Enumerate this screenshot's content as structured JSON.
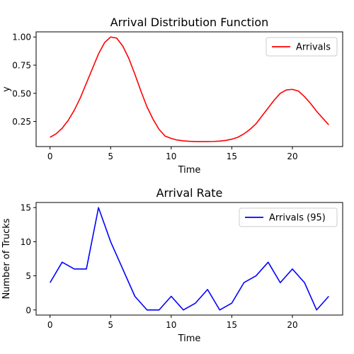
{
  "chart_data": [
    {
      "type": "line",
      "title": "Arrival Distribution Function",
      "xlabel": "Time",
      "ylabel": "y",
      "xlim": [
        -1.15,
        24.15
      ],
      "ylim": [
        0.0275,
        1.0455
      ],
      "xticks": [
        0,
        5,
        10,
        15,
        20
      ],
      "yticks": [
        0.25,
        0.5,
        0.75,
        1.0
      ],
      "ytick_labels": [
        "0.25",
        "0.50",
        "0.75",
        "1.00"
      ],
      "legend_position": "upper-right",
      "series": [
        {
          "name": "Arrivals",
          "color": "#ff0000",
          "x": [
            0,
            0.5,
            1,
            1.5,
            2,
            2.5,
            3,
            3.5,
            4,
            4.5,
            5,
            5.5,
            6,
            6.5,
            7,
            7.5,
            8,
            8.5,
            9,
            9.5,
            10,
            10.5,
            11,
            11.5,
            12,
            12.5,
            13,
            13.5,
            14,
            14.5,
            15,
            15.5,
            16,
            16.5,
            17,
            17.5,
            18,
            18.5,
            19,
            19.5,
            20,
            20.5,
            21,
            21.5,
            22,
            22.5,
            23
          ],
          "y": [
            0.11,
            0.14,
            0.19,
            0.26,
            0.35,
            0.46,
            0.59,
            0.72,
            0.85,
            0.95,
            1.0,
            0.99,
            0.92,
            0.81,
            0.67,
            0.52,
            0.38,
            0.27,
            0.18,
            0.12,
            0.1,
            0.085,
            0.078,
            0.074,
            0.072,
            0.072,
            0.072,
            0.073,
            0.076,
            0.082,
            0.093,
            0.11,
            0.14,
            0.18,
            0.23,
            0.3,
            0.37,
            0.44,
            0.5,
            0.53,
            0.535,
            0.52,
            0.47,
            0.41,
            0.34,
            0.28,
            0.22
          ]
        }
      ]
    },
    {
      "type": "line",
      "title": "Arrival Rate",
      "xlabel": "Time",
      "ylabel": "Number of Trucks",
      "xlim": [
        -1.15,
        24.15
      ],
      "ylim": [
        -0.75,
        15.75
      ],
      "xticks": [
        0,
        5,
        10,
        15,
        20
      ],
      "yticks": [
        0,
        5,
        10,
        15
      ],
      "ytick_labels": [
        "0",
        "5",
        "10",
        "15"
      ],
      "legend_position": "upper-right",
      "series": [
        {
          "name": "Arrivals (95)",
          "color": "#0000ff",
          "x": [
            0,
            1,
            2,
            3,
            4,
            5,
            6,
            7,
            8,
            9,
            10,
            11,
            12,
            13,
            14,
            15,
            16,
            17,
            18,
            19,
            20,
            21,
            22,
            23
          ],
          "y": [
            4,
            7,
            6,
            6,
            15,
            10,
            6,
            2,
            0,
            0,
            2,
            0,
            1,
            3,
            0,
            1,
            4,
            5,
            7,
            4,
            6,
            4,
            0,
            2
          ]
        }
      ]
    }
  ]
}
